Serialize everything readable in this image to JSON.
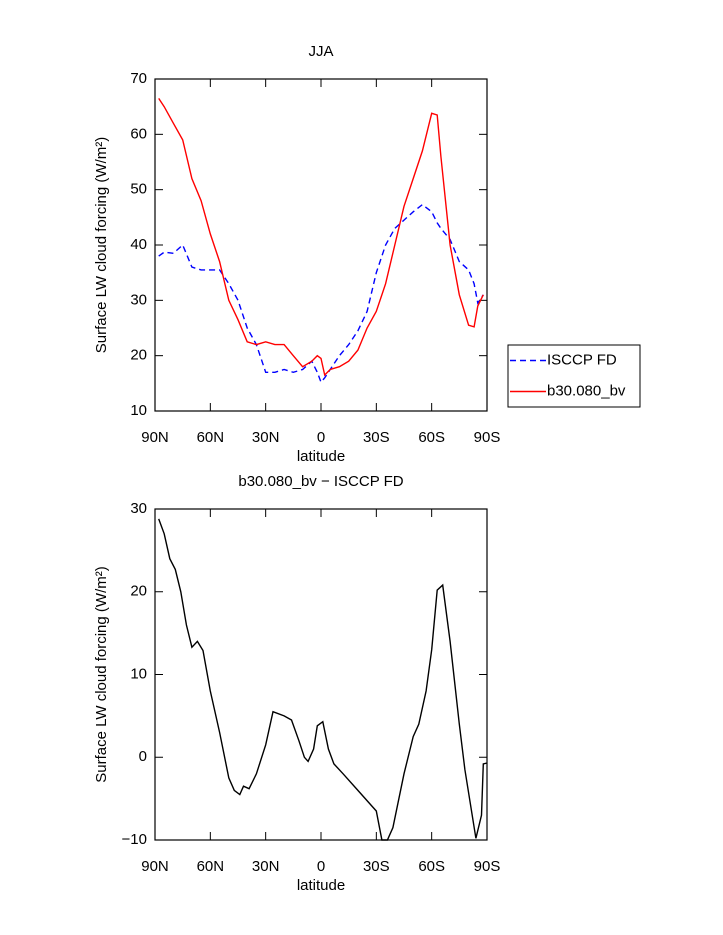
{
  "chart_data": [
    {
      "type": "line",
      "title": "JJA",
      "xlabel": "latitude",
      "ylabel": "Surface LW cloud forcing (W/m²)",
      "x": [
        88,
        85,
        80,
        75,
        70,
        65,
        60,
        55,
        50,
        45,
        40,
        35,
        30,
        25,
        20,
        15,
        10,
        5,
        2,
        0,
        -2,
        -5,
        -10,
        -15,
        -20,
        -25,
        -30,
        -35,
        -40,
        -45,
        -50,
        -55,
        -60,
        -63,
        -65,
        -70,
        -75,
        -80,
        -83,
        -85,
        -88
      ],
      "series": [
        {
          "name": "ISCCP FD",
          "color": "#0000ff",
          "dash": true,
          "values": [
            38,
            38.7,
            38.5,
            40,
            36,
            35.5,
            35.5,
            35.5,
            33,
            30,
            25,
            22,
            17,
            17,
            17.5,
            17,
            17.5,
            19,
            17,
            15.2,
            16,
            17.5,
            20,
            22,
            24.5,
            28,
            35,
            40,
            43,
            44.5,
            46,
            47.3,
            46,
            44,
            43,
            41,
            37,
            35.5,
            33,
            29.5,
            31
          ]
        },
        {
          "name": "b30.080_bv",
          "color": "#ff0000",
          "dash": false,
          "values": [
            66.5,
            65,
            62,
            59,
            52,
            48,
            42,
            37,
            30,
            26.5,
            22.5,
            22,
            22.5,
            22,
            22,
            20,
            18,
            19,
            20,
            19.5,
            16.5,
            17.5,
            18,
            19,
            21,
            25,
            28,
            33,
            40,
            47,
            52,
            57,
            63.8,
            63.5,
            56,
            40,
            31,
            25.5,
            25.2,
            29,
            31
          ]
        }
      ],
      "xlim": [
        90,
        -90
      ],
      "xticks": [
        {
          "value": 90,
          "label": "90N"
        },
        {
          "value": 60,
          "label": "60N"
        },
        {
          "value": 30,
          "label": "30N"
        },
        0,
        {
          "value": -30,
          "label": "30S"
        },
        {
          "value": -60,
          "label": "60S"
        },
        {
          "value": -90,
          "label": "90S"
        }
      ],
      "ylim": [
        10,
        70
      ],
      "yticks": [
        10,
        20,
        30,
        40,
        50,
        60,
        70
      ],
      "legend": "right"
    },
    {
      "type": "line",
      "title": "b30.080_bv − ISCCP FD",
      "xlabel": "latitude",
      "ylabel": "Surface LW cloud forcing (W/m²)",
      "x": [
        88,
        85,
        82,
        79,
        76,
        73,
        70,
        67,
        64,
        60,
        55,
        50,
        47,
        44,
        42,
        39,
        35,
        30,
        26,
        20,
        16,
        12,
        9,
        7,
        4,
        2,
        -1,
        -4,
        -7,
        -12,
        -20,
        -28,
        -30,
        -33,
        -36,
        -39,
        -45,
        -50,
        -53,
        -57,
        -60,
        -63,
        -66,
        -70,
        -75,
        -78,
        -84,
        -87,
        -88,
        -90
      ],
      "series": [
        {
          "color": "#000000",
          "dash": false,
          "values": [
            28.8,
            27,
            24,
            22.7,
            20,
            16,
            13.3,
            14,
            12.9,
            8,
            3,
            -2.5,
            -4,
            -4.5,
            -3.5,
            -3.8,
            -2,
            1.5,
            5.5,
            5,
            4.5,
            2,
            0,
            -0.5,
            1,
            3.8,
            4.3,
            1,
            -0.8,
            -2,
            -4,
            -6,
            -6.5,
            -10,
            -10,
            -8.5,
            -2,
            2.5,
            4,
            8,
            13,
            20.2,
            20.8,
            14,
            4,
            -1.5,
            -9.8,
            -7,
            -0.8,
            -0.7
          ]
        }
      ],
      "xlim": [
        90,
        -90
      ],
      "xticks": [
        {
          "value": 90,
          "label": "90N"
        },
        {
          "value": 60,
          "label": "60N"
        },
        {
          "value": 30,
          "label": "30N"
        },
        0,
        {
          "value": -30,
          "label": "30S"
        },
        {
          "value": -60,
          "label": "60S"
        },
        {
          "value": -90,
          "label": "90S"
        }
      ],
      "ylim": [
        -10,
        30
      ],
      "yticks": [
        {
          "value": -10,
          "label": "−10"
        },
        0,
        10,
        20,
        30
      ]
    }
  ]
}
